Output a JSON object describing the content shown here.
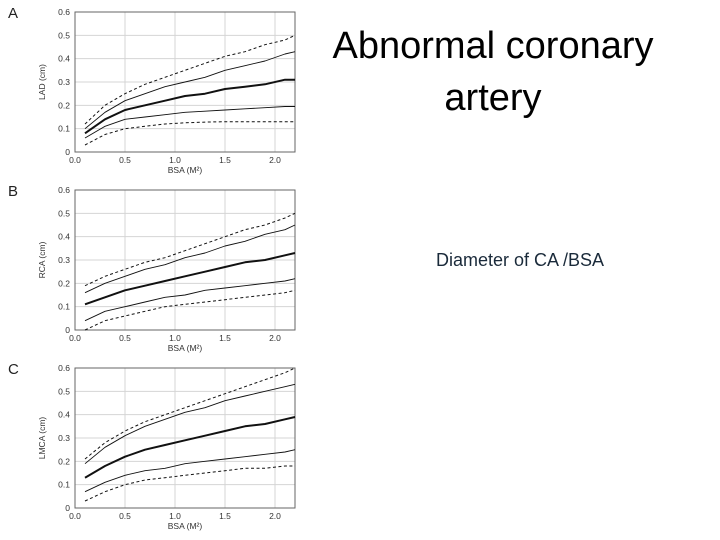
{
  "title": "Abnormal coronary artery",
  "subtitle": "Diameter of CA /BSA",
  "chart_data": [
    {
      "type": "line",
      "panel_label": "A",
      "xlabel": "BSA (M²)",
      "ylabel": "LAD (cm)",
      "xlim": [
        0,
        2.2
      ],
      "ylim": [
        0,
        0.6
      ],
      "xticks": [
        "0.0",
        "0.5",
        "1.0",
        "1.5",
        "2.0"
      ],
      "yticks": [
        "0",
        "0.1",
        "0.2",
        "0.3",
        "0.4",
        "0.5",
        "0.6"
      ],
      "grid": true,
      "x": [
        0.1,
        0.3,
        0.5,
        0.7,
        0.9,
        1.1,
        1.3,
        1.5,
        1.7,
        1.9,
        2.1,
        2.2
      ],
      "series": [
        {
          "style": "dashed",
          "values": [
            0.12,
            0.2,
            0.25,
            0.29,
            0.32,
            0.35,
            0.38,
            0.41,
            0.43,
            0.46,
            0.48,
            0.5
          ]
        },
        {
          "style": "thin",
          "values": [
            0.1,
            0.17,
            0.22,
            0.25,
            0.28,
            0.3,
            0.32,
            0.35,
            0.37,
            0.39,
            0.42,
            0.43
          ]
        },
        {
          "style": "bold",
          "values": [
            0.08,
            0.14,
            0.18,
            0.2,
            0.22,
            0.24,
            0.25,
            0.27,
            0.28,
            0.29,
            0.31,
            0.31
          ]
        },
        {
          "style": "thin",
          "values": [
            0.06,
            0.11,
            0.14,
            0.15,
            0.16,
            0.17,
            0.175,
            0.18,
            0.185,
            0.19,
            0.195,
            0.195
          ]
        },
        {
          "style": "dashed",
          "values": [
            0.03,
            0.075,
            0.1,
            0.11,
            0.12,
            0.125,
            0.128,
            0.13,
            0.13,
            0.13,
            0.13,
            0.13
          ]
        }
      ]
    },
    {
      "type": "line",
      "panel_label": "B",
      "xlabel": "BSA (M²)",
      "ylabel": "RCA (cm)",
      "xlim": [
        0,
        2.2
      ],
      "ylim": [
        0,
        0.6
      ],
      "xticks": [
        "0.0",
        "0.5",
        "1.0",
        "1.5",
        "2.0"
      ],
      "yticks": [
        "0",
        "0.1",
        "0.2",
        "0.3",
        "0.4",
        "0.5",
        "0.6"
      ],
      "grid": true,
      "x": [
        0.1,
        0.3,
        0.5,
        0.7,
        0.9,
        1.1,
        1.3,
        1.5,
        1.7,
        1.9,
        2.1,
        2.2
      ],
      "series": [
        {
          "style": "dashed",
          "values": [
            0.19,
            0.23,
            0.26,
            0.29,
            0.31,
            0.34,
            0.37,
            0.4,
            0.43,
            0.45,
            0.48,
            0.5
          ]
        },
        {
          "style": "thin",
          "values": [
            0.16,
            0.2,
            0.23,
            0.26,
            0.28,
            0.31,
            0.33,
            0.36,
            0.38,
            0.41,
            0.43,
            0.45
          ]
        },
        {
          "style": "bold",
          "values": [
            0.11,
            0.14,
            0.17,
            0.19,
            0.21,
            0.23,
            0.25,
            0.27,
            0.29,
            0.3,
            0.32,
            0.33
          ]
        },
        {
          "style": "thin",
          "values": [
            0.04,
            0.08,
            0.1,
            0.12,
            0.14,
            0.15,
            0.17,
            0.18,
            0.19,
            0.2,
            0.21,
            0.22
          ]
        },
        {
          "style": "dashed",
          "values": [
            0.0,
            0.04,
            0.06,
            0.08,
            0.1,
            0.11,
            0.12,
            0.13,
            0.14,
            0.15,
            0.16,
            0.17
          ]
        }
      ]
    },
    {
      "type": "line",
      "panel_label": "C",
      "xlabel": "BSA (M²)",
      "ylabel": "LMCA (cm)",
      "xlim": [
        0,
        2.2
      ],
      "ylim": [
        0,
        0.6
      ],
      "xticks": [
        "0.0",
        "0.5",
        "1.0",
        "1.5",
        "2.0"
      ],
      "yticks": [
        "0",
        "0.1",
        "0.2",
        "0.3",
        "0.4",
        "0.5",
        "0.6"
      ],
      "grid": true,
      "x": [
        0.1,
        0.3,
        0.5,
        0.7,
        0.9,
        1.1,
        1.3,
        1.5,
        1.7,
        1.9,
        2.1,
        2.2
      ],
      "series": [
        {
          "style": "dashed",
          "values": [
            0.21,
            0.28,
            0.33,
            0.37,
            0.4,
            0.43,
            0.46,
            0.49,
            0.52,
            0.55,
            0.58,
            0.6
          ]
        },
        {
          "style": "thin",
          "values": [
            0.19,
            0.26,
            0.31,
            0.35,
            0.38,
            0.41,
            0.43,
            0.46,
            0.48,
            0.5,
            0.52,
            0.53
          ]
        },
        {
          "style": "bold",
          "values": [
            0.13,
            0.18,
            0.22,
            0.25,
            0.27,
            0.29,
            0.31,
            0.33,
            0.35,
            0.36,
            0.38,
            0.39
          ]
        },
        {
          "style": "thin",
          "values": [
            0.07,
            0.11,
            0.14,
            0.16,
            0.17,
            0.19,
            0.2,
            0.21,
            0.22,
            0.23,
            0.24,
            0.25
          ]
        },
        {
          "style": "dashed",
          "values": [
            0.03,
            0.07,
            0.1,
            0.12,
            0.13,
            0.14,
            0.15,
            0.16,
            0.17,
            0.17,
            0.18,
            0.18
          ]
        }
      ]
    }
  ]
}
